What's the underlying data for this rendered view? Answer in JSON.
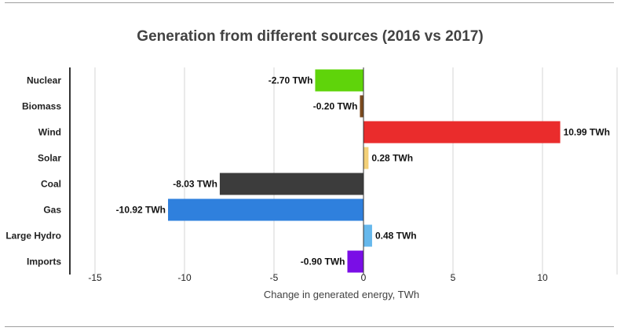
{
  "chart_data": {
    "type": "bar",
    "orientation": "horizontal",
    "title": "Generation from different sources (2016 vs 2017)",
    "xlabel": "Change in generated energy, TWh",
    "ylabel": "",
    "xlim": [
      -17,
      11
    ],
    "xticks": [
      -15,
      -10,
      -5,
      0,
      5,
      10
    ],
    "grid": true,
    "legend": "none",
    "categories": [
      "Nuclear",
      "Biomass",
      "Wind",
      "Solar",
      "Coal",
      "Gas",
      "Large Hydro",
      "Imports"
    ],
    "values": [
      -2.7,
      -0.2,
      10.99,
      0.28,
      -8.03,
      -10.92,
      0.48,
      -0.9
    ],
    "data_labels": [
      "-2.70 TWh",
      "-0.20 TWh",
      "10.99 TWh",
      "0.28 TWh",
      "-8.03 TWh",
      "-10.92 TWh",
      "0.48 TWh",
      "-0.90 TWh"
    ],
    "colors": [
      "#5fd40a",
      "#7b4a1e",
      "#ea2c2c",
      "#f3d078",
      "#3c3c3c",
      "#2f80dd",
      "#66b8ec",
      "#7a0ee6"
    ]
  }
}
